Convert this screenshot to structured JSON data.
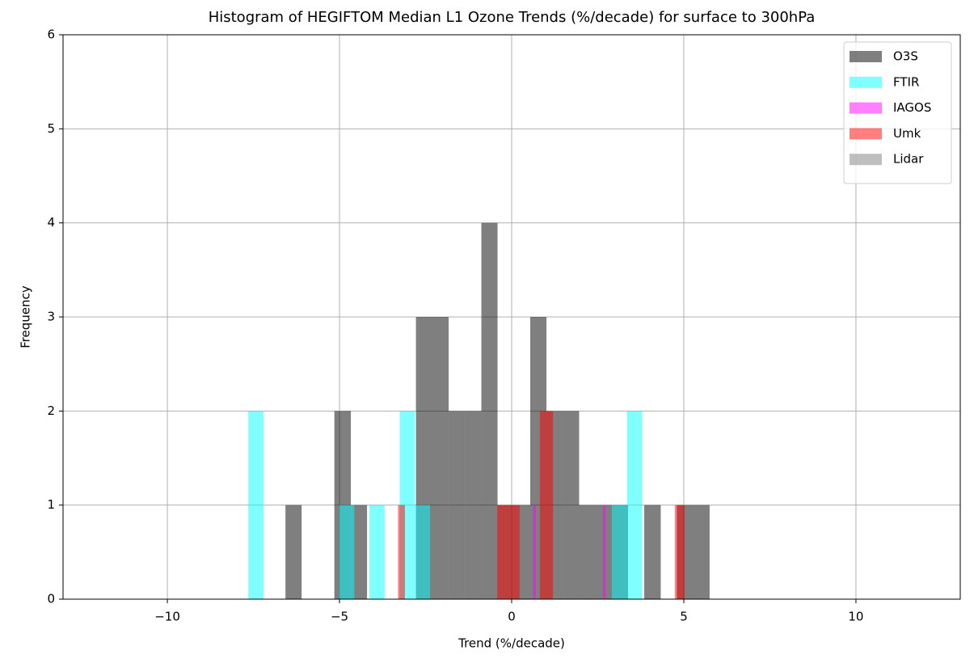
{
  "chart_data": {
    "type": "histogram",
    "title": "Histogram of HEGIFTOM Median L1 Ozone Trends (%/decade) for surface to 300hPa",
    "x_label": "Trend (%/decade)",
    "y_label": "Frequency",
    "xlim": [
      -13.03,
      13.03
    ],
    "ylim": [
      0,
      6
    ],
    "xticks": [
      {
        "value": -10,
        "label": "−10"
      },
      {
        "value": -5,
        "label": "−5"
      },
      0,
      5,
      10
    ],
    "yticks": [
      0,
      1,
      2,
      3,
      4,
      5,
      6
    ],
    "grid": true,
    "legend": "upper right",
    "alpha": 0.5,
    "series": [
      {
        "name": "O3S",
        "color": "#000000",
        "bins": [
          -6.57,
          -6.1,
          -5.62,
          -5.15,
          -4.67,
          -4.2,
          -3.73,
          -3.25,
          -2.78,
          -2.3,
          -1.83,
          -1.36,
          -0.88,
          -0.41,
          0.06,
          0.54,
          1.01,
          1.48,
          1.96,
          2.43,
          2.91,
          3.38,
          3.85,
          4.33,
          4.8,
          5.27,
          5.75
        ],
        "values": [
          1,
          0,
          0,
          2,
          1,
          0,
          0,
          0,
          3,
          3,
          2,
          2,
          4,
          1,
          1,
          3,
          2,
          2,
          1,
          1,
          1,
          0,
          1,
          0,
          1,
          1
        ]
      },
      {
        "name": "FTIR",
        "color": "#00ffff",
        "bins": [
          -7.65,
          -7.21,
          -6.77,
          -6.33,
          -5.89,
          -5.45,
          -5.01,
          -4.57,
          -4.13,
          -3.69,
          -3.25,
          -2.81,
          -2.37,
          -1.93,
          -1.49,
          -1.05,
          -0.61,
          -0.17,
          0.27,
          0.71,
          1.15,
          1.59,
          2.03,
          2.47,
          2.91,
          3.35,
          3.79
        ],
        "values": [
          2,
          0,
          0,
          0,
          0,
          0,
          1,
          0,
          1,
          0,
          2,
          1,
          0,
          0,
          0,
          0,
          0,
          0,
          0,
          0,
          0,
          0,
          0,
          0,
          1,
          2
        ]
      },
      {
        "name": "IAGOS",
        "color": "#ff00ff",
        "bins": [
          0.62,
          0.7,
          2.65,
          2.73
        ],
        "values": [
          1,
          0,
          1
        ]
      },
      {
        "name": "Umk",
        "color": "#ff0000",
        "bins": [
          -3.3,
          -3.1,
          -0.42,
          -0.1,
          0.23,
          0.82,
          1.2,
          4.74,
          5.02
        ],
        "values": [
          1,
          0,
          1,
          1,
          0,
          2,
          0,
          1
        ]
      },
      {
        "name": "Lidar",
        "color": "#808080",
        "bins": [],
        "values": []
      }
    ]
  }
}
